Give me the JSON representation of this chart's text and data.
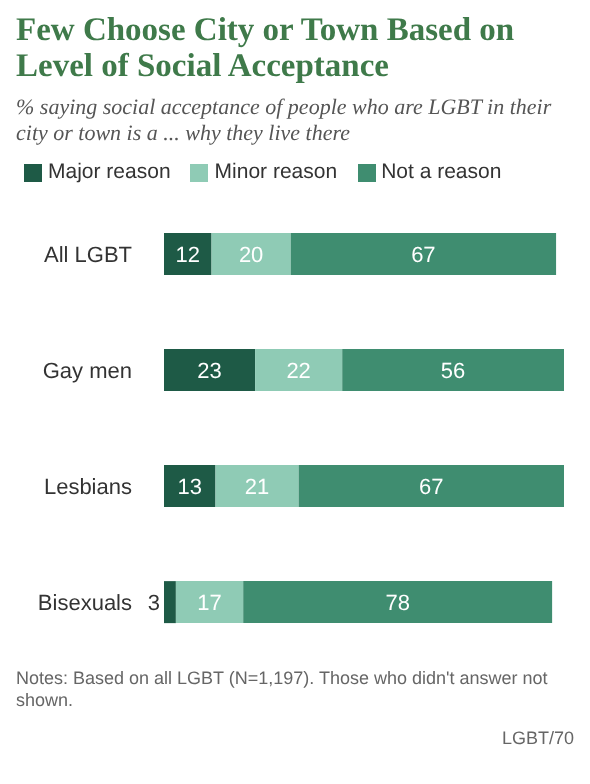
{
  "chart_data": {
    "type": "bar",
    "orientation": "horizontal",
    "stacked": true,
    "title": "Few Choose City or Town Based on Level of Social Acceptance",
    "subtitle": "% saying social acceptance of people who are LGBT in their city or town is a ... why they live there",
    "categories": [
      "All LGBT",
      "Gay men",
      "Lesbians",
      "Bisexuals"
    ],
    "series": [
      {
        "name": "Major reason",
        "color": "#1e5a46",
        "values": [
          12,
          23,
          13,
          3
        ]
      },
      {
        "name": "Minor reason",
        "color": "#8fcbb5",
        "values": [
          20,
          22,
          21,
          17
        ]
      },
      {
        "name": "Not a reason",
        "color": "#3f8d70",
        "values": [
          67,
          56,
          67,
          78
        ]
      }
    ],
    "data_labels": true,
    "legend": "top left",
    "annotations": [
      "Notes: Based on all LGBT (N=1,197). Those who didn't answer not shown.",
      "LGBT/70"
    ]
  }
}
